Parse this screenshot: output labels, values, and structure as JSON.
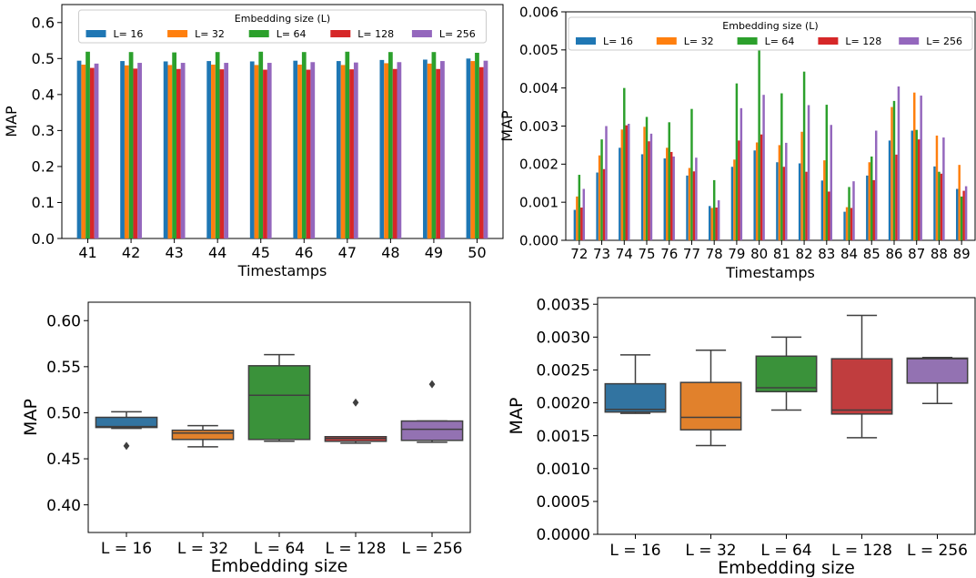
{
  "chart_data": [
    {
      "type": "bar",
      "xlabel": "Timestamps",
      "ylabel": "MAP",
      "ylim": [
        0,
        0.65
      ],
      "yticks": [
        "0.0",
        "0.1",
        "0.2",
        "0.3",
        "0.4",
        "0.5",
        "0.6"
      ],
      "categories": [
        "41",
        "42",
        "43",
        "44",
        "45",
        "46",
        "47",
        "48",
        "49",
        "50"
      ],
      "legend": {
        "title": "Embedding size (L)",
        "placement": "top-center"
      },
      "series": [
        {
          "name": "L= 16",
          "color": "#1f77b4",
          "values": [
            0.494,
            0.493,
            0.492,
            0.493,
            0.492,
            0.494,
            0.493,
            0.496,
            0.497,
            0.5
          ]
        },
        {
          "name": "L= 32",
          "color": "#ff7f0e",
          "values": [
            0.483,
            0.481,
            0.482,
            0.483,
            0.482,
            0.483,
            0.482,
            0.487,
            0.486,
            0.493
          ]
        },
        {
          "name": "L= 64",
          "color": "#2ca02c",
          "values": [
            0.519,
            0.518,
            0.517,
            0.518,
            0.519,
            0.518,
            0.519,
            0.518,
            0.518,
            0.516
          ]
        },
        {
          "name": "L= 128",
          "color": "#d62728",
          "values": [
            0.474,
            0.472,
            0.471,
            0.47,
            0.469,
            0.469,
            0.47,
            0.471,
            0.471,
            0.476
          ]
        },
        {
          "name": "L= 256",
          "color": "#9467bd",
          "values": [
            0.486,
            0.488,
            0.488,
            0.488,
            0.488,
            0.49,
            0.489,
            0.49,
            0.493,
            0.494
          ]
        }
      ]
    },
    {
      "type": "bar",
      "xlabel": "Timestamps",
      "ylabel": "MAP",
      "ylim": [
        0,
        0.006
      ],
      "yticks": [
        "0.000",
        "0.001",
        "0.002",
        "0.003",
        "0.004",
        "0.005",
        "0.006"
      ],
      "categories": [
        "72",
        "73",
        "74",
        "75",
        "76",
        "77",
        "78",
        "79",
        "80",
        "81",
        "82",
        "83",
        "84",
        "85",
        "86",
        "87",
        "88",
        "89"
      ],
      "legend": {
        "title": "Embedding size (L)",
        "placement": "top-center"
      },
      "series": [
        {
          "name": "L= 16",
          "color": "#1f77b4",
          "values": [
            0.0008,
            0.00178,
            0.00243,
            0.00226,
            0.00215,
            0.0017,
            0.0009,
            0.00193,
            0.00236,
            0.00205,
            0.00202,
            0.00157,
            0.00075,
            0.0017,
            0.00262,
            0.00288,
            0.00194,
            0.00135
          ]
        },
        {
          "name": "L= 32",
          "color": "#ff7f0e",
          "values": [
            0.00115,
            0.00223,
            0.00291,
            0.00298,
            0.00243,
            0.0019,
            0.00085,
            0.00212,
            0.00257,
            0.0025,
            0.00285,
            0.0021,
            0.00087,
            0.00205,
            0.0035,
            0.00388,
            0.00275,
            0.00198
          ]
        },
        {
          "name": "L= 64",
          "color": "#2ca02c",
          "values": [
            0.00172,
            0.00265,
            0.004,
            0.00324,
            0.0031,
            0.00345,
            0.00158,
            0.00412,
            0.005,
            0.00386,
            0.00443,
            0.00356,
            0.0014,
            0.0022,
            0.00366,
            0.0029,
            0.0018,
            0.00115
          ]
        },
        {
          "name": "L= 128",
          "color": "#d62728",
          "values": [
            0.00086,
            0.00187,
            0.00302,
            0.0026,
            0.00232,
            0.00181,
            0.00086,
            0.00262,
            0.00278,
            0.00193,
            0.0018,
            0.00128,
            0.00085,
            0.00158,
            0.00225,
            0.00265,
            0.00175,
            0.0013
          ]
        },
        {
          "name": "L= 256",
          "color": "#9467bd",
          "values": [
            0.00135,
            0.003,
            0.00306,
            0.0028,
            0.0022,
            0.00217,
            0.00105,
            0.00347,
            0.00382,
            0.00256,
            0.00355,
            0.00303,
            0.00155,
            0.00288,
            0.00404,
            0.0038,
            0.0027,
            0.00142
          ]
        }
      ]
    },
    {
      "type": "box",
      "xlabel": "Embedding size",
      "ylabel": "MAP",
      "ylim": [
        0.37,
        0.62
      ],
      "yticks": [
        "0.40",
        "0.45",
        "0.50",
        "0.55",
        "0.60"
      ],
      "categories": [
        "L = 16",
        "L = 32",
        "L = 64",
        "L = 128",
        "L = 256"
      ],
      "boxes": [
        {
          "color": "#3274a1",
          "whislo": 0.483,
          "q1": 0.484,
          "med": 0.485,
          "q3": 0.495,
          "whishi": 0.501,
          "fliers": [
            0.464
          ]
        },
        {
          "color": "#e1812c",
          "whislo": 0.463,
          "q1": 0.471,
          "med": 0.478,
          "q3": 0.481,
          "whishi": 0.486,
          "fliers": []
        },
        {
          "color": "#3a923a",
          "whislo": 0.469,
          "q1": 0.471,
          "med": 0.519,
          "q3": 0.551,
          "whishi": 0.563,
          "fliers": []
        },
        {
          "color": "#c03d3e",
          "whislo": 0.467,
          "q1": 0.469,
          "med": 0.472,
          "q3": 0.474,
          "whishi": 0.474,
          "fliers": [
            0.511
          ]
        },
        {
          "color": "#9372b2",
          "whislo": 0.468,
          "q1": 0.47,
          "med": 0.482,
          "q3": 0.491,
          "whishi": 0.491,
          "fliers": [
            0.531
          ]
        }
      ]
    },
    {
      "type": "box",
      "xlabel": "Embedding size",
      "ylabel": "MAP",
      "ylim": [
        0,
        0.0036
      ],
      "yticks": [
        "0.0000",
        "0.0005",
        "0.0010",
        "0.0015",
        "0.0020",
        "0.0025",
        "0.0030",
        "0.0035"
      ],
      "categories": [
        "L = 16",
        "L = 32",
        "L = 64",
        "L = 128",
        "L = 256"
      ],
      "boxes": [
        {
          "color": "#3274a1",
          "whislo": 0.00184,
          "q1": 0.00186,
          "med": 0.0019,
          "q3": 0.00229,
          "whishi": 0.00273,
          "fliers": []
        },
        {
          "color": "#e1812c",
          "whislo": 0.00135,
          "q1": 0.00159,
          "med": 0.00178,
          "q3": 0.00231,
          "whishi": 0.0028,
          "fliers": []
        },
        {
          "color": "#3a923a",
          "whislo": 0.00189,
          "q1": 0.00217,
          "med": 0.00223,
          "q3": 0.00271,
          "whishi": 0.003,
          "fliers": []
        },
        {
          "color": "#c03d3e",
          "whislo": 0.00147,
          "q1": 0.00183,
          "med": 0.00189,
          "q3": 0.00267,
          "whishi": 0.00333,
          "fliers": []
        },
        {
          "color": "#9372b2",
          "whislo": 0.00199,
          "q1": 0.0023,
          "med": 0.00267,
          "q3": 0.00268,
          "whishi": 0.00269,
          "fliers": []
        }
      ]
    }
  ]
}
